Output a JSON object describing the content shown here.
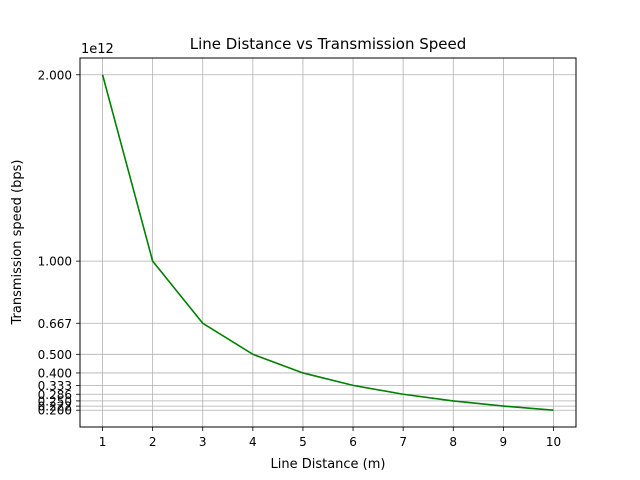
{
  "chart_data": {
    "type": "line",
    "title": "Line Distance vs Transmission Speed",
    "xlabel": "Line Distance (m)",
    "ylabel": "Transmission speed (bps)",
    "y_offset_label": "1e12",
    "x": [
      1,
      2,
      3,
      4,
      5,
      6,
      7,
      8,
      9,
      10
    ],
    "series": [
      {
        "values": [
          2000000000000.0,
          1000000000000.0,
          666700000000.0,
          500000000000.0,
          400000000000.0,
          333300000000.0,
          285700000000.0,
          250000000000.0,
          222200000000.0,
          200000000000.0
        ],
        "color": "#008000"
      }
    ],
    "x_ticks": [
      1,
      2,
      3,
      4,
      5,
      6,
      7,
      8,
      9,
      10
    ],
    "x_tick_labels": [
      "1",
      "2",
      "3",
      "4",
      "5",
      "6",
      "7",
      "8",
      "9",
      "10"
    ],
    "y_ticks": [
      2000000000000.0,
      1000000000000.0,
      666700000000.0,
      500000000000.0,
      400000000000.0,
      333300000000.0,
      285700000000.0,
      250000000000.0,
      222200000000.0,
      200000000000.0
    ],
    "y_tick_labels": [
      "2.000",
      "1.000",
      "0.667",
      "0.500",
      "0.400",
      "0.333",
      "0.286",
      "0.250",
      "0.222",
      "0.200"
    ],
    "xlim": [
      0.55,
      10.45
    ],
    "ylim": [
      110000000000.0,
      2090000000000.0
    ],
    "grid": true
  }
}
